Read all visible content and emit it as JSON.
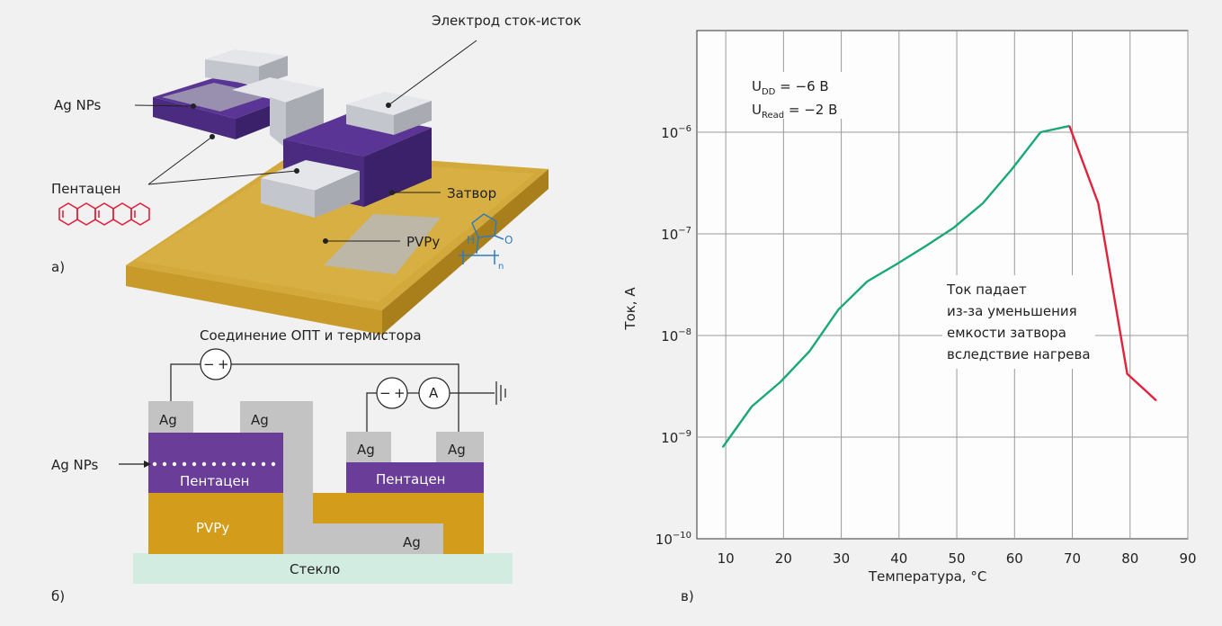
{
  "panel_a": {
    "label": "а)",
    "electrode_label": "Электрод сток-исток",
    "agnp_label": "Ag NPs",
    "pentacene_label": "Пентацен",
    "gate_label": "Затвор",
    "pvpy_label": "PVPy",
    "chem_h": "H",
    "chem_o": "O",
    "chem_n": "n"
  },
  "panel_b": {
    "label": "б)",
    "connection_label": "Соединение  ОПТ и термистора",
    "minus": "−",
    "plus": "+",
    "ammeter": "A",
    "agnp_label": "Ag NPs",
    "ag": "Ag",
    "pentacene": "Пентацен",
    "pvpy": "PVPy",
    "glass": "Стекло"
  },
  "panel_c": {
    "label": "в)",
    "udd_main": "U",
    "udd_sub": "DD",
    "udd_value": " = −6 В",
    "uread_main": "U",
    "uread_sub": "Read",
    "uread_value": " = −2 В",
    "annotation": [
      "Ток падает",
      "из-за уменьшения",
      "емкости затвора",
      "вследствие нагрева"
    ]
  },
  "chart_data": {
    "type": "line",
    "xlabel": "Температура, °C",
    "ylabel": "Ток, А",
    "xlim": [
      5,
      90
    ],
    "ylim": [
      1e-10,
      1e-05
    ],
    "yscale": "log",
    "grid": true,
    "x_ticks": [
      "10",
      "20",
      "30",
      "40",
      "50",
      "60",
      "70",
      "80",
      "90"
    ],
    "y_ticks": [
      {
        "base": "10",
        "exp": "−10",
        "value": 1e-10
      },
      {
        "base": "10",
        "exp": "−9",
        "value": 1e-09
      },
      {
        "base": "10",
        "exp": "−8",
        "value": 1e-08
      },
      {
        "base": "10",
        "exp": "−7",
        "value": 1e-07
      },
      {
        "base": "10",
        "exp": "−6",
        "value": 1e-06
      }
    ],
    "series": [
      {
        "color": "#1aa878",
        "x": [
          9.5,
          14.5,
          19.5,
          24.5,
          29.5,
          34.5,
          39.5,
          44.5,
          49.5,
          54.5,
          59.5,
          64.5,
          69.5
        ],
        "y": [
          8e-10,
          2e-09,
          3.5e-09,
          7e-09,
          1.8e-08,
          3.4e-08,
          5e-08,
          7.5e-08,
          1.15e-07,
          2e-07,
          4.3e-07,
          1e-06,
          1.15e-06
        ]
      },
      {
        "color": "#e0223c",
        "x": [
          69.5,
          74.5,
          79.5,
          84.5
        ],
        "y": [
          1.15e-06,
          2e-07,
          4.2e-09,
          2.3e-09
        ]
      }
    ]
  }
}
